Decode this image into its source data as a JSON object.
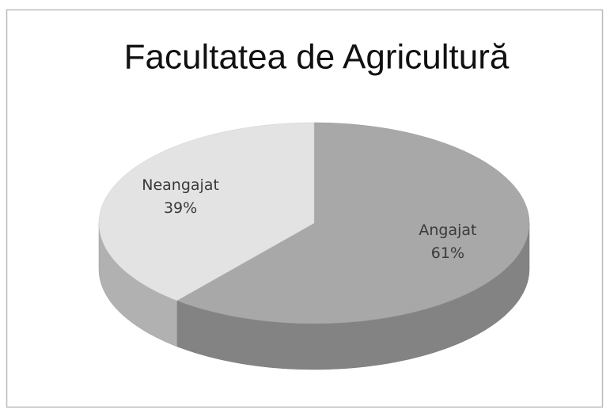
{
  "chart_data": {
    "type": "pie",
    "title": "Facultatea de Agricultură",
    "categories": [
      "Angajat",
      "Neangajat"
    ],
    "values": [
      61,
      39
    ],
    "value_labels": [
      "61%",
      "39%"
    ],
    "colors": [
      "#a8a8a8",
      "#e3e3e3"
    ]
  }
}
